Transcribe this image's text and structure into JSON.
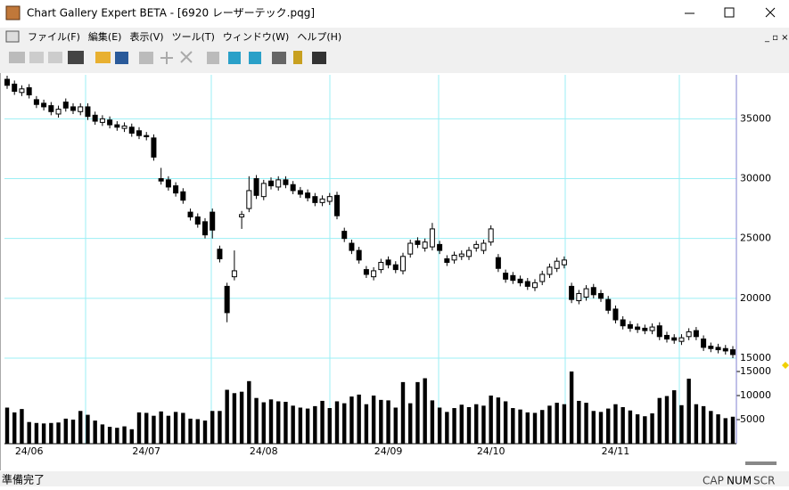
{
  "window": {
    "title": "Chart Gallery Expert BETA - [6920 レーザーテック.pqg]",
    "menu": [
      "ファイル(F)",
      "編集(E)",
      "表示(V)",
      "ツール(T)",
      "ウィンドウ(W)",
      "ヘルプ(H)"
    ],
    "status": "準備完了",
    "indicators": [
      "CAP",
      "NUM",
      "SCR"
    ]
  },
  "chart_data": {
    "type": "candlestick",
    "categories": [
      null,
      null,
      null,
      "24/06",
      null,
      null,
      null,
      null,
      null,
      null,
      null,
      null,
      null,
      null,
      null,
      null,
      null,
      null,
      null,
      "24/07",
      null,
      null,
      null,
      null,
      null,
      null,
      null,
      null,
      null,
      null,
      null,
      null,
      null,
      null,
      null,
      "24/08",
      null,
      null,
      null,
      null,
      null,
      null,
      null,
      null,
      null,
      null,
      null,
      null,
      null,
      null,
      null,
      null,
      "24/09",
      null,
      null,
      null,
      null,
      null,
      null,
      null,
      null,
      null,
      null,
      null,
      null,
      null,
      "24/10",
      null,
      null,
      null,
      null,
      null,
      null,
      null,
      null,
      null,
      null,
      null,
      null,
      null,
      null,
      null,
      null,
      "24/11",
      null,
      null,
      null,
      null,
      null,
      null,
      null,
      null,
      null,
      null,
      null,
      null,
      null,
      null,
      null,
      null
    ],
    "open": [
      38300,
      37900,
      37200,
      37600,
      36600,
      36300,
      36100,
      35400,
      36400,
      36000,
      35600,
      36000,
      35300,
      34700,
      34900,
      34500,
      34200,
      34300,
      34000,
      33600,
      33400,
      30000,
      29900,
      29400,
      28900,
      27200,
      26800,
      26400,
      27200,
      24100,
      21000,
      21800,
      26800,
      27500,
      30000,
      28500,
      29800,
      29300,
      29900,
      29500,
      29000,
      28800,
      28500,
      28000,
      28100,
      28600,
      25600,
      24600,
      24000,
      22400,
      21800,
      22400,
      23200,
      22800,
      22300,
      23700,
      24800,
      24200,
      24300,
      24500,
      23300,
      23200,
      23500,
      23500,
      24200,
      24000,
      24700,
      23400,
      22100,
      21900,
      21600,
      21400,
      20900,
      21400,
      22000,
      22500,
      22800,
      21000,
      19800,
      20100,
      20900,
      20400,
      19900,
      19100,
      18200,
      17800,
      17600,
      17500,
      17300,
      17700,
      16900,
      16700,
      16400,
      16800,
      17300,
      16600,
      16000,
      15900,
      15800,
      15700
    ],
    "high": [
      38600,
      38200,
      37800,
      37900,
      36900,
      36600,
      36400,
      36100,
      36700,
      36300,
      36300,
      36300,
      35600,
      35300,
      35200,
      34800,
      34700,
      34600,
      34300,
      33900,
      33700,
      30900,
      30200,
      29700,
      29200,
      27500,
      27100,
      26700,
      27500,
      24400,
      21300,
      24000,
      27300,
      30200,
      30300,
      29900,
      30100,
      30200,
      30200,
      29800,
      29300,
      29100,
      28800,
      28600,
      28800,
      28900,
      25900,
      24900,
      24300,
      22700,
      22600,
      23300,
      23500,
      23100,
      23800,
      24900,
      25100,
      25000,
      26300,
      24800,
      23600,
      23900,
      24000,
      24300,
      24800,
      24900,
      26100,
      23700,
      22400,
      22200,
      21900,
      21700,
      21600,
      22300,
      22900,
      23400,
      23500,
      21300,
      20700,
      21100,
      21200,
      20700,
      20200,
      19400,
      18500,
      18100,
      17900,
      17800,
      17900,
      18000,
      17200,
      17000,
      17000,
      17500,
      17600,
      16900,
      16300,
      16200,
      16100,
      16000
    ],
    "low": [
      37500,
      37000,
      36900,
      36700,
      35900,
      35700,
      35300,
      35100,
      35600,
      35400,
      35300,
      34900,
      34500,
      34400,
      34200,
      34000,
      33900,
      33500,
      33300,
      33200,
      31500,
      29500,
      29000,
      28500,
      27900,
      26500,
      25900,
      25000,
      25000,
      23000,
      18000,
      21500,
      25800,
      27200,
      28300,
      28200,
      29100,
      29000,
      29200,
      28700,
      28400,
      28100,
      27700,
      27700,
      27800,
      26600,
      24700,
      23700,
      22900,
      21700,
      21500,
      22100,
      22500,
      22100,
      22000,
      23400,
      24200,
      23900,
      24000,
      23700,
      22700,
      22900,
      23200,
      23200,
      23900,
      23700,
      24400,
      22200,
      21300,
      21200,
      21000,
      20700,
      20600,
      21100,
      21700,
      22200,
      22500,
      19600,
      19500,
      19800,
      20000,
      19700,
      18700,
      17900,
      17400,
      17200,
      17100,
      17000,
      17000,
      16500,
      16300,
      16200,
      16100,
      16500,
      16500,
      15600,
      15500,
      15400,
      15300,
      15000
    ],
    "close": [
      37800,
      37300,
      37500,
      37000,
      36200,
      36000,
      35600,
      35800,
      35900,
      35700,
      36000,
      35200,
      34800,
      35000,
      34500,
      34300,
      34400,
      33800,
      33600,
      33500,
      31800,
      29800,
      29300,
      28800,
      28200,
      26800,
      26200,
      25300,
      25700,
      23300,
      18800,
      22300,
      27000,
      29000,
      28600,
      29600,
      29400,
      29900,
      29500,
      29000,
      28700,
      28400,
      28000,
      28300,
      28500,
      26900,
      25000,
      24000,
      23200,
      22000,
      22300,
      23000,
      22800,
      22400,
      23500,
      24600,
      24500,
      24700,
      25800,
      24000,
      23000,
      23600,
      23700,
      24000,
      24500,
      24600,
      25800,
      22500,
      21600,
      21500,
      21300,
      21000,
      21300,
      22000,
      22600,
      23100,
      23200,
      19900,
      20400,
      20800,
      20300,
      20000,
      19000,
      18200,
      17700,
      17500,
      17400,
      17300,
      17600,
      16800,
      16600,
      16500,
      16700,
      17200,
      16800,
      15900,
      15800,
      15700,
      15600,
      15300
    ],
    "ylim": [
      14850,
      38600
    ],
    "yticks": [
      15000,
      20000,
      25000,
      30000,
      35000
    ],
    "volume": {
      "values": [
        7500,
        6500,
        7200,
        4500,
        4300,
        4200,
        4300,
        4400,
        5200,
        5000,
        6800,
        6000,
        4800,
        4000,
        3500,
        3300,
        3600,
        3000,
        6500,
        6400,
        5800,
        6700,
        5800,
        6600,
        6400,
        5200,
        5100,
        4800,
        6800,
        6800,
        11200,
        10500,
        10800,
        13000,
        9500,
        8600,
        9200,
        8800,
        8700,
        7900,
        7500,
        7300,
        7800,
        8900,
        7400,
        8800,
        8400,
        9800,
        10200,
        8200,
        10000,
        9100,
        9000,
        7500,
        12800,
        8400,
        12800,
        13600,
        9000,
        7500,
        6600,
        7400,
        8100,
        7600,
        8200,
        7900,
        10000,
        9600,
        8800,
        7400,
        7100,
        6500,
        6400,
        7000,
        7900,
        8500,
        8200,
        15000,
        8900,
        8500,
        6800,
        6600,
        7300,
        8200,
        7600,
        6900,
        6100,
        5700,
        6300,
        9500,
        9900,
        11100,
        8000,
        13500,
        8200,
        7800,
        6800,
        6100,
        5300,
        5600
      ],
      "ylim": [
        0,
        15000
      ],
      "yticks": [
        5000,
        10000,
        15000
      ],
      "color": "#000000"
    },
    "grid": true,
    "grid_color": "#9beff5",
    "up_color": "#ffffff",
    "down_color": "#000000"
  }
}
